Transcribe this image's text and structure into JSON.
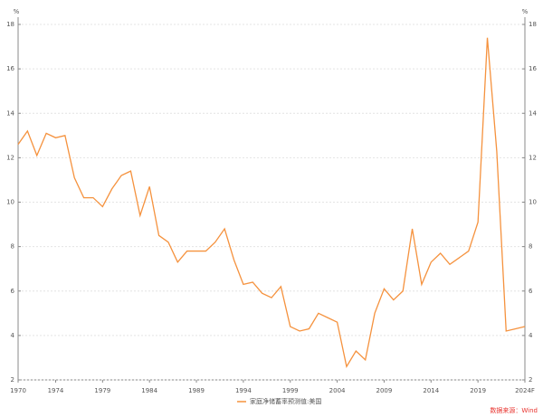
{
  "chart_data": {
    "type": "line",
    "ylabel": "%",
    "y2label": "%",
    "x": [
      1970,
      1971,
      1972,
      1973,
      1974,
      1975,
      1976,
      1977,
      1978,
      1979,
      1980,
      1981,
      1982,
      1983,
      1984,
      1985,
      1986,
      1987,
      1988,
      1989,
      1990,
      1991,
      1992,
      1993,
      1994,
      1995,
      1996,
      1997,
      1998,
      1999,
      2000,
      2001,
      2002,
      2003,
      2004,
      2005,
      2006,
      2007,
      2008,
      2009,
      2010,
      2011,
      2012,
      2013,
      2014,
      2015,
      2016,
      2017,
      2018,
      2019,
      2020,
      2021,
      2022,
      2023,
      2024
    ],
    "series": [
      {
        "name": "家庭净储蓄率预测值:美国",
        "color": "#f5923e",
        "values": [
          12.6,
          13.2,
          12.1,
          13.1,
          12.9,
          13.0,
          11.1,
          10.2,
          10.2,
          9.8,
          10.6,
          11.2,
          11.4,
          9.4,
          10.7,
          8.5,
          8.2,
          7.3,
          7.8,
          7.8,
          7.8,
          8.2,
          8.8,
          7.4,
          6.3,
          6.4,
          5.9,
          5.7,
          6.2,
          4.4,
          4.2,
          4.3,
          5.0,
          4.8,
          4.6,
          2.6,
          3.3,
          2.9,
          5.0,
          6.1,
          5.6,
          6.0,
          8.8,
          6.3,
          7.3,
          7.7,
          7.2,
          7.5,
          7.8,
          9.1,
          17.4,
          12.3,
          4.2,
          4.3,
          4.4
        ]
      }
    ],
    "xlim": [
      1970,
      2024
    ],
    "xticks": [
      1970,
      1974,
      1979,
      1984,
      1989,
      1994,
      1999,
      2004,
      2009,
      2014,
      2019,
      {
        "value": 2024,
        "label": "2024F"
      }
    ],
    "ylim": [
      2,
      18
    ],
    "yticks": [
      2,
      4,
      6,
      8,
      10,
      12,
      14,
      16,
      18
    ],
    "y2lim": [
      2,
      18
    ],
    "y2ticks": [
      2,
      4,
      6,
      8,
      10,
      12,
      14,
      16,
      18
    ],
    "grid": true,
    "source": "数据来源：Wind",
    "source_color": "#e8322d"
  }
}
